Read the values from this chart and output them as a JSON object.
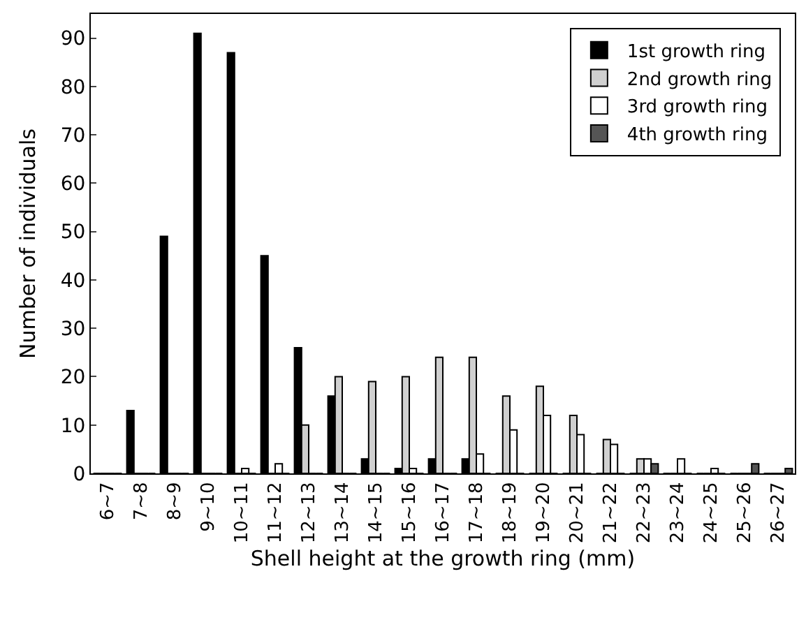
{
  "chart_data": {
    "type": "bar",
    "xlabel": "Shell height at the growth ring (mm)",
    "ylabel": "Number of individuals",
    "categories": [
      "6~7",
      "7~8",
      "8~9",
      "9~10",
      "10~11",
      "11~12",
      "12~13",
      "13~14",
      "14~15",
      "15~16",
      "16~17",
      "17~18",
      "18~19",
      "19~20",
      "20~21",
      "21~22",
      "22~23",
      "23~24",
      "24~25",
      "25~26",
      "26~27"
    ],
    "series": [
      {
        "name": "1st growth ring",
        "color": "#000000",
        "values": [
          0,
          13,
          49,
          91,
          87,
          45,
          26,
          16,
          3,
          1,
          3,
          3,
          0,
          0,
          0,
          0,
          0,
          0,
          0,
          0,
          0
        ]
      },
      {
        "name": "2nd growth ring",
        "color": "#d0d0d0",
        "values": [
          0,
          0,
          0,
          0,
          0,
          0,
          10,
          20,
          19,
          20,
          24,
          24,
          16,
          18,
          12,
          7,
          3,
          0,
          0,
          0,
          0
        ]
      },
      {
        "name": "3rd growth ring",
        "color": "#ffffff",
        "values": [
          0,
          0,
          0,
          0,
          1,
          2,
          0,
          0,
          0,
          1,
          0,
          4,
          9,
          12,
          8,
          6,
          3,
          3,
          1,
          0,
          0
        ]
      },
      {
        "name": "4th growth ring",
        "color": "#555555",
        "values": [
          0,
          0,
          0,
          0,
          0,
          0,
          0,
          0,
          0,
          0,
          0,
          0,
          0,
          0,
          0,
          0,
          2,
          0,
          0,
          2,
          1
        ]
      }
    ],
    "ylim": [
      0,
      95
    ],
    "yticks": [
      0,
      10,
      20,
      30,
      40,
      50,
      60,
      70,
      80,
      90
    ],
    "grid": false,
    "legend": "top right"
  }
}
